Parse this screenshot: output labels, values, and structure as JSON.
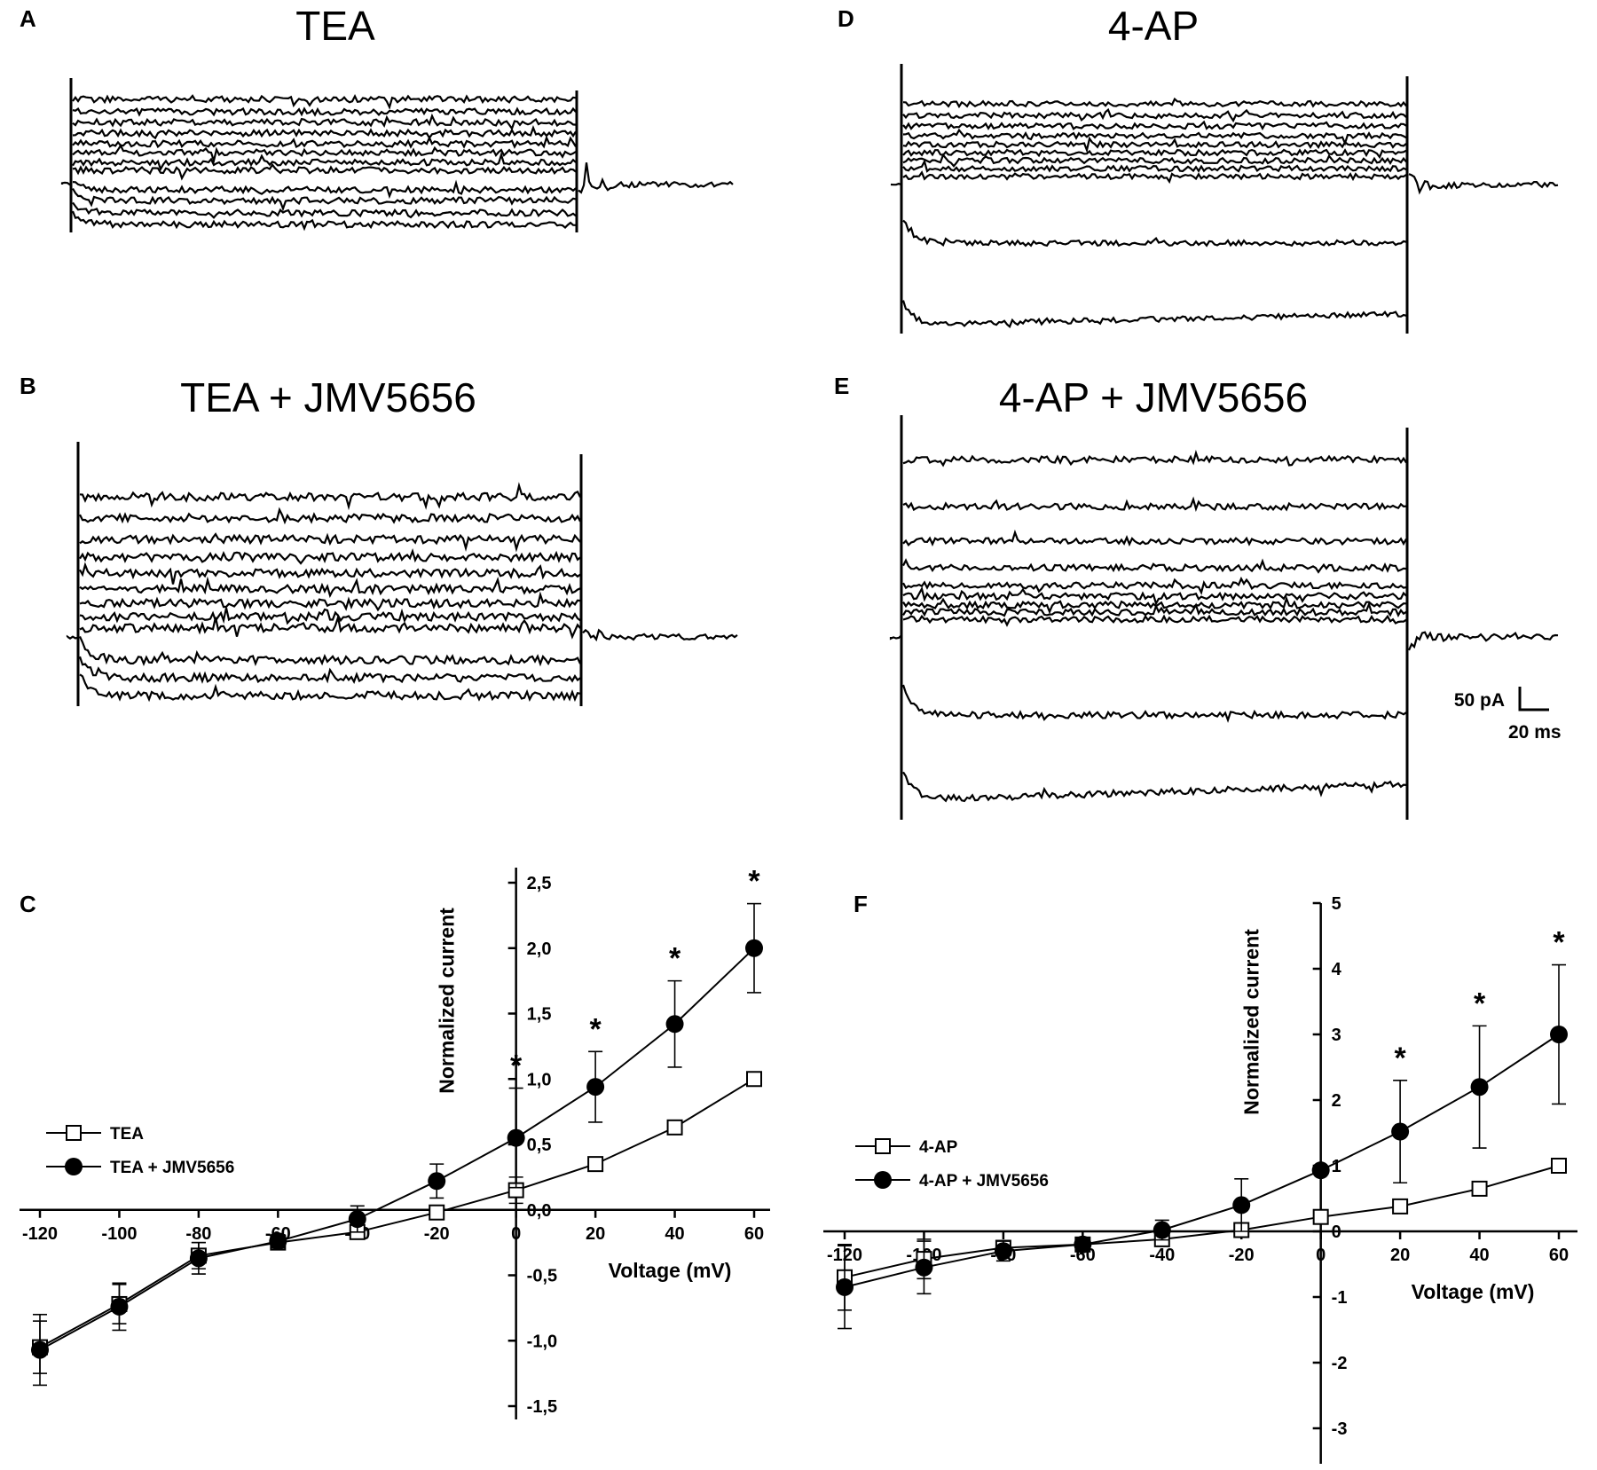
{
  "panels": {
    "A": {
      "label": "A",
      "title": "TEA"
    },
    "B": {
      "label": "B",
      "title": "TEA + JMV5656"
    },
    "C": {
      "label": "C"
    },
    "D": {
      "label": "D",
      "title": "4-AP"
    },
    "E": {
      "label": "E",
      "title": "4-AP + JMV5656"
    },
    "F": {
      "label": "F"
    }
  },
  "scale_bar": {
    "current": "50 pA",
    "time": "20 ms"
  },
  "colors": {
    "ink": "#000000",
    "background": "#ffffff"
  },
  "chart_data": [
    {
      "panel": "C",
      "type": "line",
      "xlabel": "Voltage (mV)",
      "ylabel": "Normalized current",
      "x": [
        -120,
        -100,
        -80,
        -60,
        -40,
        -20,
        0,
        20,
        40,
        60
      ],
      "xlim": [
        -120,
        60
      ],
      "ylim": [
        -1.5,
        2.5
      ],
      "x_ticks": [
        "-120",
        "-100",
        "-80",
        "-60",
        "-40",
        "-20",
        "0",
        "20",
        "40",
        "60"
      ],
      "y_ticks": [
        "-1,5",
        "-1,0",
        "-0,5",
        "0,0",
        "0,5",
        "1,0",
        "1,5",
        "2,0",
        "2,5"
      ],
      "legend_position": "left",
      "series": [
        {
          "name": "TEA",
          "marker": "open-square",
          "values": [
            -1.05,
            -0.72,
            -0.35,
            -0.25,
            -0.17,
            -0.02,
            0.15,
            0.35,
            0.63,
            1.0
          ],
          "errors": [
            0.2,
            0.15,
            0.1,
            0.05,
            0.05,
            0.05,
            0.1,
            0.03,
            0.03,
            0.0
          ]
        },
        {
          "name": "TEA + JMV5656",
          "marker": "filled-circle",
          "values": [
            -1.07,
            -0.74,
            -0.37,
            -0.24,
            -0.07,
            0.22,
            0.55,
            0.94,
            1.42,
            2.0
          ],
          "errors": [
            0.27,
            0.18,
            0.12,
            0.05,
            0.1,
            0.13,
            0.38,
            0.27,
            0.33,
            0.34
          ]
        }
      ],
      "significance": [
        {
          "x": 0,
          "label": "*"
        },
        {
          "x": 20,
          "label": "*"
        },
        {
          "x": 40,
          "label": "*"
        },
        {
          "x": 60,
          "label": "*"
        }
      ],
      "grid": false
    },
    {
      "panel": "F",
      "type": "line",
      "xlabel": "Voltage (mV)",
      "ylabel": "Normalized current",
      "x": [
        -120,
        -100,
        -80,
        -60,
        -40,
        -20,
        0,
        20,
        40,
        60
      ],
      "xlim": [
        -120,
        60
      ],
      "ylim": [
        -3.5,
        5
      ],
      "x_ticks": [
        "-120",
        "-100",
        "-80",
        "-60",
        "-40",
        "-20",
        "0",
        "20",
        "40",
        "60"
      ],
      "y_ticks": [
        "-3",
        "-2",
        "-1",
        "0",
        "1",
        "2",
        "3",
        "4",
        "5"
      ],
      "legend_position": "left",
      "series": [
        {
          "name": "4-AP",
          "marker": "open-square",
          "values": [
            -0.7,
            -0.42,
            -0.25,
            -0.2,
            -0.12,
            0.02,
            0.22,
            0.38,
            0.65,
            1.0
          ],
          "errors": [
            0.5,
            0.3,
            0.1,
            0.05,
            0.05,
            0.05,
            0.1,
            0.05,
            0.05,
            0.0
          ]
        },
        {
          "name": "4-AP + JMV5656",
          "marker": "filled-circle",
          "values": [
            -0.85,
            -0.55,
            -0.3,
            -0.2,
            0.02,
            0.4,
            0.93,
            1.52,
            2.2,
            3.0
          ],
          "errors": [
            0.63,
            0.4,
            0.15,
            0.06,
            0.15,
            0.4,
            0.05,
            0.78,
            0.93,
            1.06
          ]
        }
      ],
      "significance": [
        {
          "x": 20,
          "label": "*"
        },
        {
          "x": 40,
          "label": "*"
        },
        {
          "x": 60,
          "label": "*"
        }
      ],
      "grid": false
    }
  ]
}
